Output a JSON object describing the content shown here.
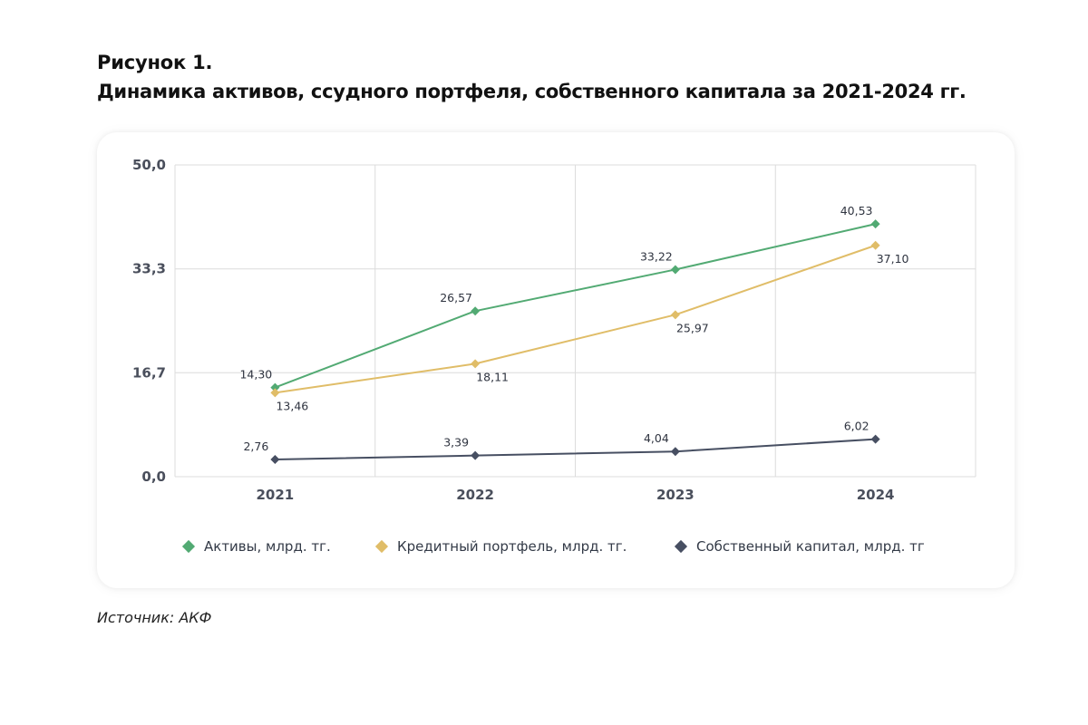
{
  "figure": {
    "label": "Рисунок 1.",
    "title": "Динамика активов, ссудного портфеля, собственного капитала за 2021-2024 гг."
  },
  "source": "Источник: АКФ",
  "chart_data": {
    "type": "line",
    "categories": [
      "2021",
      "2022",
      "2023",
      "2024"
    ],
    "ylim": [
      0,
      50
    ],
    "yticks": [
      {
        "value": 0,
        "label": "0,0"
      },
      {
        "value": 16.67,
        "label": "16,7"
      },
      {
        "value": 33.33,
        "label": "33,3"
      },
      {
        "value": 50,
        "label": "50,0"
      }
    ],
    "grid": true,
    "legend_position": "bottom",
    "series": [
      {
        "name": "Активы, млрд. тг.",
        "color": "#52aa73",
        "values": [
          14.3,
          26.57,
          33.22,
          40.53
        ],
        "labels": [
          "14,30",
          "26,57",
          "33,22",
          "40,53"
        ],
        "label_position": "above-left"
      },
      {
        "name": "Кредитный портфель, млрд. тг.",
        "color": "#e0bd68",
        "values": [
          13.46,
          18.11,
          25.97,
          37.1
        ],
        "labels": [
          "13,46",
          "18,11",
          "25,97",
          "37,10"
        ],
        "label_position": "below-right"
      },
      {
        "name": "Собственный капитал, млрд. тг",
        "color": "#474f62",
        "values": [
          2.76,
          3.39,
          4.04,
          6.02
        ],
        "labels": [
          "2,76",
          "3,39",
          "4,04",
          "6,02"
        ],
        "label_position": "above-left"
      }
    ]
  }
}
